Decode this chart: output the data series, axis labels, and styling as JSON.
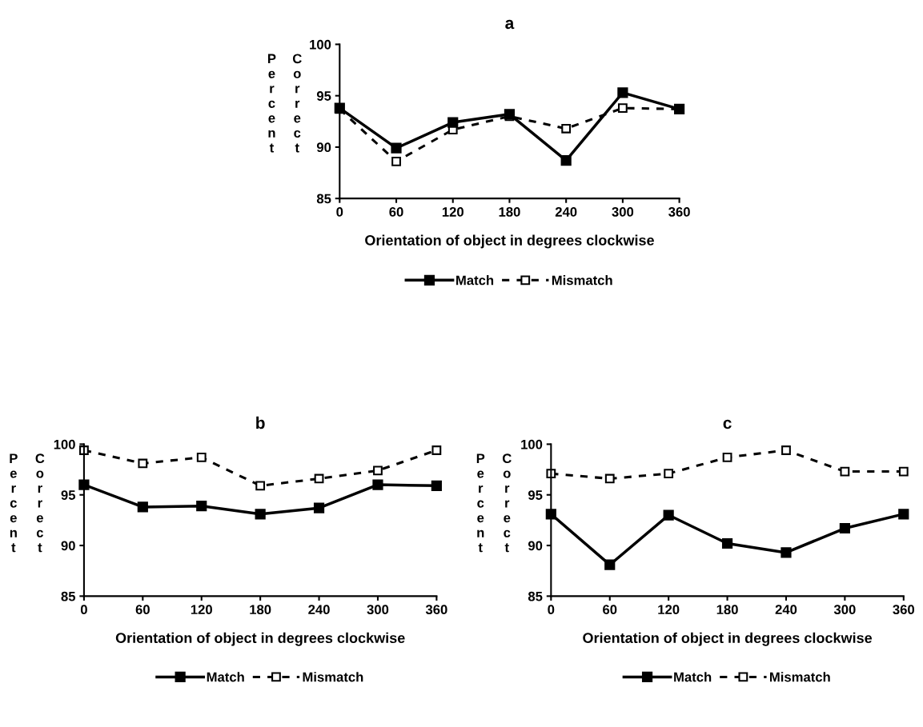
{
  "chart_data": [
    {
      "type": "line",
      "title": "a",
      "xlabel": "Orientation of object in degrees clockwise",
      "ylabel": "Percent Correct",
      "x": [
        0,
        60,
        120,
        180,
        240,
        300,
        360
      ],
      "xlim": [
        0,
        360
      ],
      "xticks": [
        0,
        60,
        120,
        180,
        240,
        300,
        360
      ],
      "ylim": [
        85,
        100
      ],
      "yticks": [
        85,
        90,
        95,
        100
      ],
      "grid": false,
      "legend": "bottom",
      "marker": "square",
      "series": [
        {
          "name": "Match",
          "color": "#000000",
          "line_style": "solid",
          "values": [
            93.8,
            89.9,
            92.4,
            93.2,
            88.7,
            95.3,
            93.7
          ]
        },
        {
          "name": "Mismatch",
          "color": "#000000",
          "line_style": "dashed",
          "values": [
            93.7,
            88.6,
            91.7,
            93.0,
            91.8,
            93.8,
            93.7
          ]
        }
      ]
    },
    {
      "type": "line",
      "title": "b",
      "xlabel": "Orientation of object in degrees clockwise",
      "ylabel": "Percent Correct",
      "x": [
        0,
        60,
        120,
        180,
        240,
        300,
        360
      ],
      "xlim": [
        0,
        360
      ],
      "xticks": [
        0,
        60,
        120,
        180,
        240,
        300,
        360
      ],
      "ylim": [
        85,
        100
      ],
      "yticks": [
        85,
        90,
        95,
        100
      ],
      "grid": false,
      "legend": "bottom",
      "marker": "square",
      "series": [
        {
          "name": "Match",
          "color": "#000000",
          "line_style": "solid",
          "values": [
            96.0,
            93.8,
            93.9,
            93.1,
            93.7,
            96.0,
            95.9
          ]
        },
        {
          "name": "Mismatch",
          "color": "#000000",
          "line_style": "dashed",
          "values": [
            99.4,
            98.1,
            98.7,
            95.9,
            96.6,
            97.4,
            99.4
          ]
        }
      ]
    },
    {
      "type": "line",
      "title": "c",
      "xlabel": "Orientation of object in degrees clockwise",
      "ylabel": "Percent Correct",
      "x": [
        0,
        60,
        120,
        180,
        240,
        300,
        360
      ],
      "xlim": [
        0,
        360
      ],
      "xticks": [
        0,
        60,
        120,
        180,
        240,
        300,
        360
      ],
      "ylim": [
        85,
        100
      ],
      "yticks": [
        85,
        90,
        95,
        100
      ],
      "grid": false,
      "legend": "bottom",
      "marker": "square",
      "series": [
        {
          "name": "Match",
          "color": "#000000",
          "line_style": "solid",
          "values": [
            93.1,
            88.1,
            93.0,
            90.2,
            89.3,
            91.7,
            93.1
          ]
        },
        {
          "name": "Mismatch",
          "color": "#000000",
          "line_style": "dashed",
          "values": [
            97.1,
            96.6,
            97.1,
            98.7,
            99.4,
            97.3,
            97.3
          ]
        }
      ]
    }
  ]
}
